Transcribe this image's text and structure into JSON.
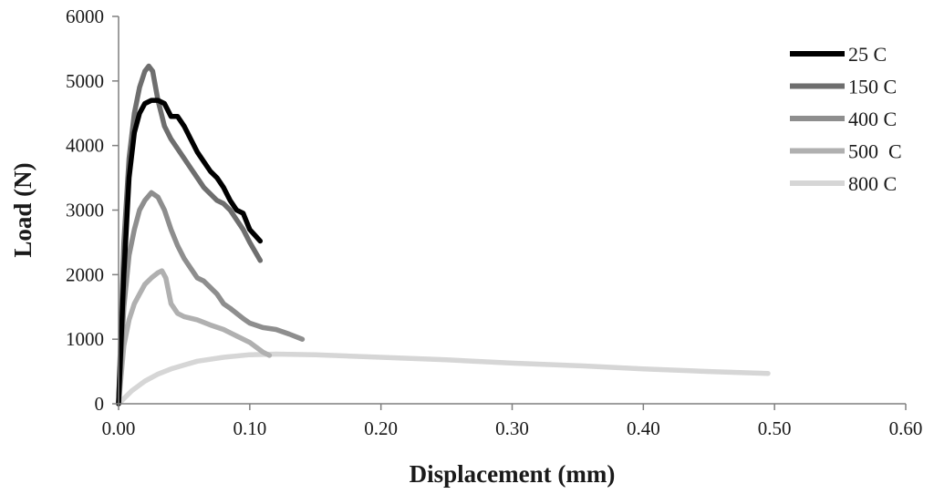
{
  "chart_data": {
    "type": "line",
    "title": "",
    "xlabel": "Displacement (mm)",
    "ylabel": "Load (N)",
    "xlim": [
      0,
      0.6
    ],
    "ylim": [
      0,
      6000
    ],
    "x_ticks": [
      "0.00",
      "0.10",
      "0.20",
      "0.30",
      "0.40",
      "0.50",
      "0.60"
    ],
    "y_ticks": [
      "0",
      "1000",
      "2000",
      "3000",
      "4000",
      "5000",
      "6000"
    ],
    "grid": false,
    "legend_position": "top-right",
    "series": [
      {
        "name": "25 C",
        "color": "#000000",
        "points": [
          [
            0,
            0
          ],
          [
            0.004,
            2000
          ],
          [
            0.008,
            3500
          ],
          [
            0.012,
            4200
          ],
          [
            0.016,
            4500
          ],
          [
            0.02,
            4650
          ],
          [
            0.025,
            4700
          ],
          [
            0.03,
            4700
          ],
          [
            0.035,
            4650
          ],
          [
            0.04,
            4450
          ],
          [
            0.045,
            4450
          ],
          [
            0.05,
            4300
          ],
          [
            0.055,
            4100
          ],
          [
            0.06,
            3900
          ],
          [
            0.065,
            3750
          ],
          [
            0.07,
            3600
          ],
          [
            0.075,
            3500
          ],
          [
            0.08,
            3350
          ],
          [
            0.085,
            3150
          ],
          [
            0.09,
            3000
          ],
          [
            0.095,
            2950
          ],
          [
            0.1,
            2700
          ],
          [
            0.108,
            2520
          ]
        ]
      },
      {
        "name": "150 C",
        "color": "#6e6e6e",
        "points": [
          [
            0,
            0
          ],
          [
            0.004,
            2500
          ],
          [
            0.008,
            3800
          ],
          [
            0.012,
            4500
          ],
          [
            0.016,
            4900
          ],
          [
            0.02,
            5150
          ],
          [
            0.023,
            5230
          ],
          [
            0.026,
            5150
          ],
          [
            0.03,
            4700
          ],
          [
            0.035,
            4300
          ],
          [
            0.04,
            4100
          ],
          [
            0.045,
            3950
          ],
          [
            0.05,
            3800
          ],
          [
            0.055,
            3650
          ],
          [
            0.06,
            3500
          ],
          [
            0.065,
            3350
          ],
          [
            0.07,
            3250
          ],
          [
            0.075,
            3150
          ],
          [
            0.08,
            3100
          ],
          [
            0.085,
            3000
          ],
          [
            0.09,
            2850
          ],
          [
            0.095,
            2700
          ],
          [
            0.1,
            2500
          ],
          [
            0.108,
            2220
          ]
        ]
      },
      {
        "name": "400 C",
        "color": "#8e8e8e",
        "points": [
          [
            0,
            0
          ],
          [
            0.004,
            1500
          ],
          [
            0.008,
            2300
          ],
          [
            0.012,
            2700
          ],
          [
            0.016,
            3000
          ],
          [
            0.02,
            3150
          ],
          [
            0.025,
            3270
          ],
          [
            0.03,
            3200
          ],
          [
            0.035,
            3000
          ],
          [
            0.04,
            2700
          ],
          [
            0.045,
            2450
          ],
          [
            0.05,
            2250
          ],
          [
            0.055,
            2100
          ],
          [
            0.06,
            1950
          ],
          [
            0.065,
            1900
          ],
          [
            0.07,
            1800
          ],
          [
            0.075,
            1700
          ],
          [
            0.08,
            1550
          ],
          [
            0.085,
            1480
          ],
          [
            0.09,
            1400
          ],
          [
            0.095,
            1320
          ],
          [
            0.1,
            1250
          ],
          [
            0.11,
            1180
          ],
          [
            0.12,
            1150
          ],
          [
            0.13,
            1080
          ],
          [
            0.14,
            1000
          ]
        ]
      },
      {
        "name": "500  C",
        "color": "#b0b0b0",
        "points": [
          [
            0,
            0
          ],
          [
            0.004,
            900
          ],
          [
            0.008,
            1300
          ],
          [
            0.012,
            1550
          ],
          [
            0.016,
            1700
          ],
          [
            0.02,
            1850
          ],
          [
            0.025,
            1950
          ],
          [
            0.03,
            2030
          ],
          [
            0.033,
            2060
          ],
          [
            0.036,
            1950
          ],
          [
            0.04,
            1550
          ],
          [
            0.045,
            1400
          ],
          [
            0.05,
            1350
          ],
          [
            0.06,
            1300
          ],
          [
            0.07,
            1220
          ],
          [
            0.08,
            1150
          ],
          [
            0.09,
            1050
          ],
          [
            0.1,
            950
          ],
          [
            0.11,
            800
          ],
          [
            0.115,
            750
          ]
        ]
      },
      {
        "name": "800 C",
        "color": "#d6d6d6",
        "points": [
          [
            0,
            0
          ],
          [
            0.01,
            200
          ],
          [
            0.02,
            350
          ],
          [
            0.03,
            460
          ],
          [
            0.04,
            540
          ],
          [
            0.05,
            600
          ],
          [
            0.06,
            660
          ],
          [
            0.08,
            720
          ],
          [
            0.1,
            760
          ],
          [
            0.12,
            770
          ],
          [
            0.15,
            760
          ],
          [
            0.2,
            720
          ],
          [
            0.25,
            680
          ],
          [
            0.3,
            630
          ],
          [
            0.35,
            590
          ],
          [
            0.4,
            540
          ],
          [
            0.45,
            500
          ],
          [
            0.495,
            470
          ]
        ]
      }
    ]
  }
}
